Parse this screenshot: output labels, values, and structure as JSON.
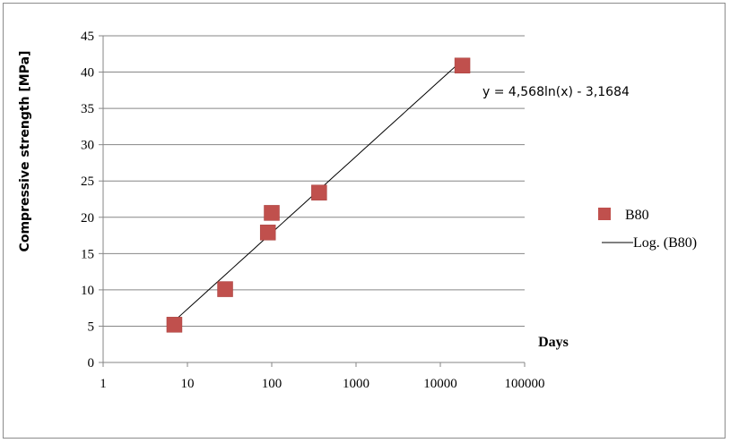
{
  "chart_data": {
    "type": "scatter",
    "xlabel": "Days",
    "ylabel": "Compressive strength [MPa]",
    "xscale": "log",
    "xlim": [
      1,
      100000
    ],
    "ylim": [
      0,
      45
    ],
    "x_ticks": [
      "1",
      "10",
      "100",
      "1000",
      "10000",
      "100000"
    ],
    "y_ticks": [
      "0",
      "5",
      "10",
      "15",
      "20",
      "25",
      "30",
      "35",
      "40",
      "45"
    ],
    "grid": "horizontal",
    "legend_position": "right",
    "series": [
      {
        "name": "B80",
        "marker": "square",
        "color": "#c0504d",
        "points": [
          {
            "x": 7,
            "y": 5.2
          },
          {
            "x": 28,
            "y": 10.1
          },
          {
            "x": 90,
            "y": 17.9
          },
          {
            "x": 100,
            "y": 20.6
          },
          {
            "x": 365,
            "y": 23.4
          },
          {
            "x": 18250,
            "y": 40.9
          }
        ]
      }
    ],
    "trendline": {
      "name": "Log. (B80)",
      "type": "logarithmic",
      "a": 4.568,
      "b": -3.1684,
      "x_range": [
        7,
        18250
      ],
      "color": "#000000",
      "equation_label": "y = 4,568ln(x) - 3,1684"
    }
  }
}
